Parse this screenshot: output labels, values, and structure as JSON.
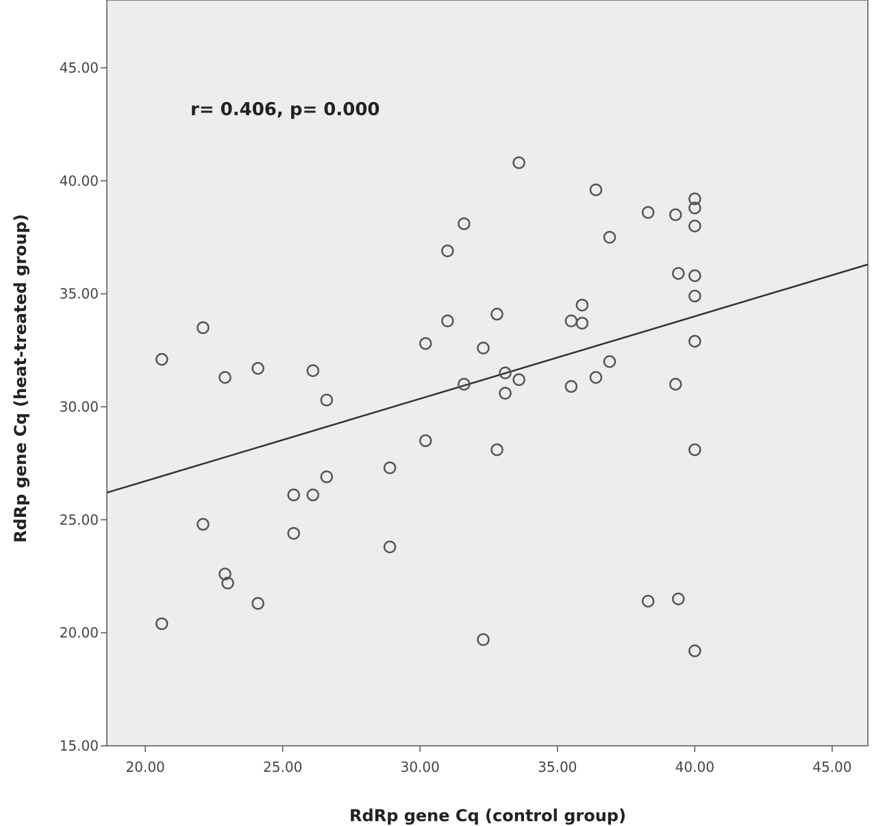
{
  "chart_data": {
    "type": "scatter",
    "title": "",
    "xlabel": "RdRp gene Cq (control group)",
    "ylabel": "RdRp gene Cq (heat-treated group)",
    "annotation": "r= 0.406, p= 0.000",
    "xlim": [
      18.6,
      46.3
    ],
    "ylim": [
      15.0,
      48.0
    ],
    "x_ticks": [
      "20.00",
      "25.00",
      "30.00",
      "35.00",
      "40.00",
      "45.00"
    ],
    "y_ticks": [
      "15.00",
      "20.00",
      "25.00",
      "30.00",
      "35.00",
      "40.00",
      "45.00"
    ],
    "grid": false,
    "fit_line": {
      "x": [
        18.6,
        46.3
      ],
      "y": [
        26.2,
        36.3
      ]
    },
    "colors": {
      "plot_background": "#ededed",
      "marker": "#555555",
      "fit_line": "#333333"
    },
    "points": [
      {
        "x": 20.6,
        "y": 32.1
      },
      {
        "x": 20.6,
        "y": 20.4
      },
      {
        "x": 22.1,
        "y": 33.5
      },
      {
        "x": 22.1,
        "y": 24.8
      },
      {
        "x": 22.9,
        "y": 31.3
      },
      {
        "x": 22.9,
        "y": 22.6
      },
      {
        "x": 23.0,
        "y": 22.2
      },
      {
        "x": 24.1,
        "y": 31.7
      },
      {
        "x": 24.1,
        "y": 21.3
      },
      {
        "x": 25.4,
        "y": 26.1
      },
      {
        "x": 25.4,
        "y": 24.4
      },
      {
        "x": 26.1,
        "y": 31.6
      },
      {
        "x": 26.1,
        "y": 26.1
      },
      {
        "x": 26.6,
        "y": 30.3
      },
      {
        "x": 26.6,
        "y": 26.9
      },
      {
        "x": 28.9,
        "y": 27.3
      },
      {
        "x": 28.9,
        "y": 23.8
      },
      {
        "x": 30.2,
        "y": 32.8
      },
      {
        "x": 30.2,
        "y": 28.5
      },
      {
        "x": 31.0,
        "y": 36.9
      },
      {
        "x": 31.0,
        "y": 33.8
      },
      {
        "x": 31.6,
        "y": 38.1
      },
      {
        "x": 31.6,
        "y": 31.0
      },
      {
        "x": 32.3,
        "y": 32.6
      },
      {
        "x": 32.3,
        "y": 19.7
      },
      {
        "x": 32.8,
        "y": 34.1
      },
      {
        "x": 32.8,
        "y": 28.1
      },
      {
        "x": 33.1,
        "y": 31.5
      },
      {
        "x": 33.1,
        "y": 30.6
      },
      {
        "x": 33.6,
        "y": 40.8
      },
      {
        "x": 33.6,
        "y": 31.2
      },
      {
        "x": 35.5,
        "y": 33.8
      },
      {
        "x": 35.5,
        "y": 30.9
      },
      {
        "x": 35.9,
        "y": 34.5
      },
      {
        "x": 35.9,
        "y": 33.7
      },
      {
        "x": 36.4,
        "y": 39.6
      },
      {
        "x": 36.4,
        "y": 31.3
      },
      {
        "x": 36.9,
        "y": 37.5
      },
      {
        "x": 36.9,
        "y": 32.0
      },
      {
        "x": 38.3,
        "y": 38.6
      },
      {
        "x": 38.3,
        "y": 21.4
      },
      {
        "x": 39.3,
        "y": 38.5
      },
      {
        "x": 39.3,
        "y": 31.0
      },
      {
        "x": 39.4,
        "y": 35.9
      },
      {
        "x": 39.4,
        "y": 21.5
      },
      {
        "x": 40.0,
        "y": 39.2
      },
      {
        "x": 40.0,
        "y": 38.8
      },
      {
        "x": 40.0,
        "y": 38.0
      },
      {
        "x": 40.0,
        "y": 35.8
      },
      {
        "x": 40.0,
        "y": 34.9
      },
      {
        "x": 40.0,
        "y": 32.9
      },
      {
        "x": 40.0,
        "y": 28.1
      },
      {
        "x": 40.0,
        "y": 19.2
      }
    ]
  }
}
